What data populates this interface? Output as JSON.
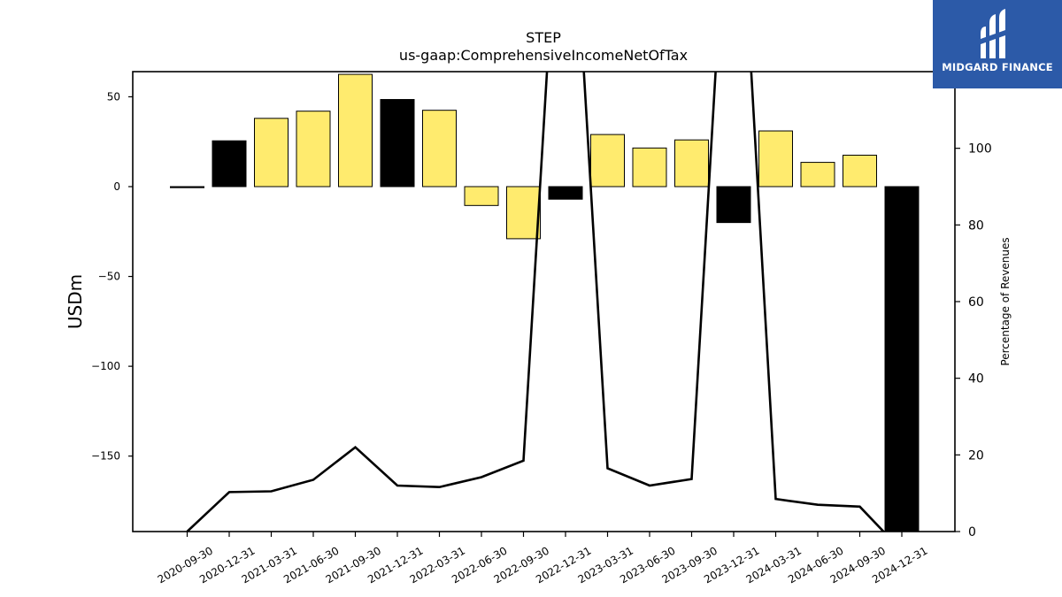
{
  "chart_data": {
    "type": "bar",
    "title": "STEP",
    "subtitle": "us-gaap:ComprehensiveIncomeNetOfTax",
    "ylabel": "USDm",
    "y2label": "Percentage of Revenues",
    "ylim": [
      -192,
      64
    ],
    "y2lim": [
      0,
      120
    ],
    "yticks": [
      50,
      0,
      -50,
      -100,
      -150
    ],
    "y2ticks": [
      0,
      20,
      40,
      60,
      80,
      100
    ],
    "categories": [
      "2020-09-30",
      "2020-12-31",
      "2021-03-31",
      "2021-06-30",
      "2021-09-30",
      "2021-12-31",
      "2022-03-31",
      "2022-06-30",
      "2022-09-30",
      "2022-12-31",
      "2023-03-31",
      "2023-06-30",
      "2023-09-30",
      "2023-12-31",
      "2024-03-31",
      "2024-06-30",
      "2024-09-30",
      "2024-12-31"
    ],
    "series": [
      {
        "type": "bar",
        "values": [
          -0.5,
          25.5,
          38,
          42,
          62.5,
          48.5,
          42.5,
          -10.5,
          -29,
          -7,
          29,
          21.5,
          26,
          -20,
          31,
          13.5,
          17.5,
          -210
        ],
        "colors": [
          "#000000",
          "#000000",
          "#ffeb6e",
          "#ffeb6e",
          "#ffeb6e",
          "#000000",
          "#ffeb6e",
          "#ffeb6e",
          "#ffeb6e",
          "#000000",
          "#ffeb6e",
          "#ffeb6e",
          "#ffeb6e",
          "#000000",
          "#ffeb6e",
          "#ffeb6e",
          "#ffeb6e",
          "#000000"
        ]
      },
      {
        "type": "line",
        "axis": "right",
        "values": [
          0,
          10.3,
          10.5,
          13.5,
          22,
          12,
          11.6,
          14.2,
          18.5,
          200,
          16.5,
          12,
          13.7,
          200,
          8.5,
          7,
          6.5,
          -5
        ],
        "color": "#000000"
      }
    ]
  },
  "logo": {
    "text": "MIDGARD FINANCE",
    "bg": "#2c5aa8"
  }
}
